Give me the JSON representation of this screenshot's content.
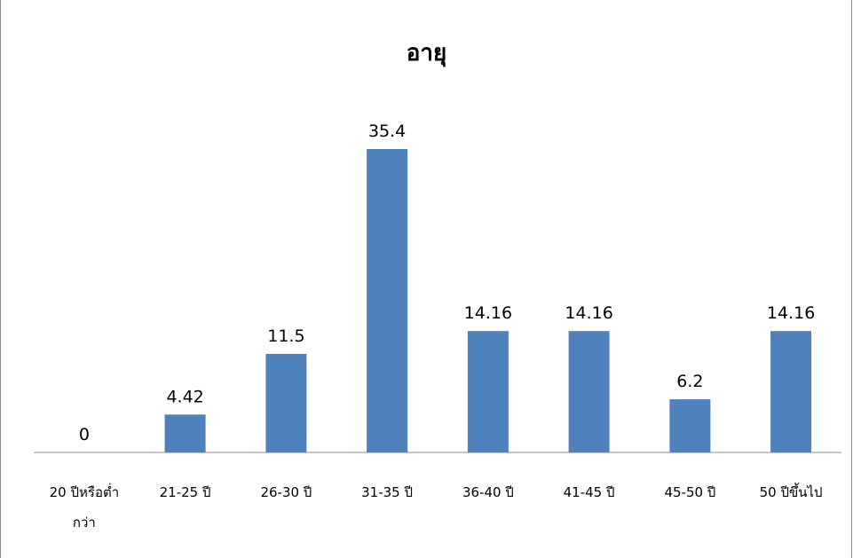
{
  "chart_data": {
    "type": "bar",
    "title": "อายุ",
    "xlabel": "",
    "ylabel": "",
    "categories": [
      [
        "20 ปีหรือต่ำ",
        "กว่า"
      ],
      [
        "21-25 ปี"
      ],
      [
        "26-30 ปี"
      ],
      [
        "31-35 ปี"
      ],
      [
        "36-40 ปี"
      ],
      [
        "41-45 ปี"
      ],
      [
        "45-50 ปี"
      ],
      [
        "50 ปีขึ้นไป"
      ]
    ],
    "values": [
      0,
      4.42,
      11.5,
      35.4,
      14.16,
      14.16,
      6.2,
      14.16
    ],
    "data_labels": [
      "0",
      "4.42",
      "11.5",
      "35.4",
      "14.16",
      "14.16",
      "6.2",
      "14.16"
    ],
    "ylim": [
      0,
      40
    ],
    "grid": false,
    "legend": "none",
    "bar_color": "#4f81bd"
  }
}
